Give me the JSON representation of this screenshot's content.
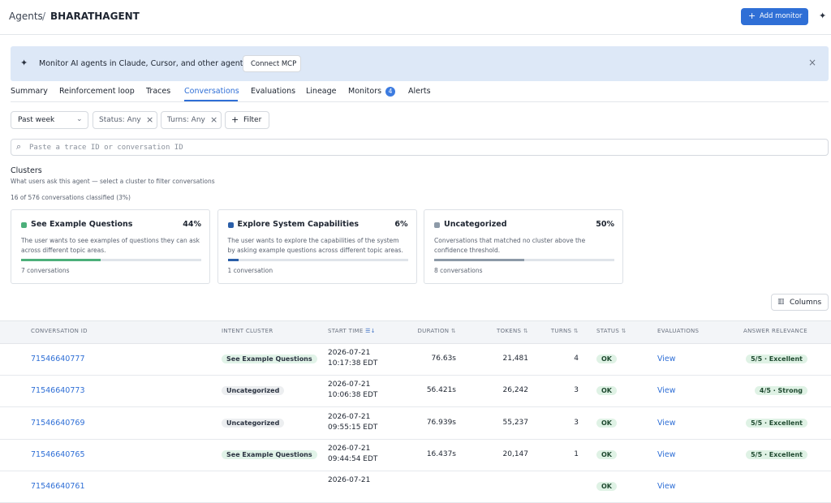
{
  "breadcrumb": {
    "parent": "Agents",
    "separator": "/",
    "current": "BHARATHAGENT"
  },
  "add_monitor": "Add monitor",
  "banner": {
    "text": "Monitor AI agents in Claude, Cursor, and other agents",
    "button": "Connect MCP"
  },
  "tabs": [
    {
      "label": "Summary"
    },
    {
      "label": "Reinforcement loop"
    },
    {
      "label": "Traces"
    },
    {
      "label": "Conversations",
      "active": true
    },
    {
      "label": "Evaluations"
    },
    {
      "label": "Lineage"
    },
    {
      "label": "Monitors",
      "badge": 4
    },
    {
      "label": "Alerts"
    }
  ],
  "filters": {
    "period": "Past week",
    "chips": [
      "Status: Any",
      "Turns: Any"
    ],
    "add": "Filter"
  },
  "search": {
    "placeholder": "Paste a trace ID or conversation ID"
  },
  "clusters": {
    "title": "Clusters",
    "subtitle": "What users ask this agent — select a cluster to filter conversations",
    "summary": "16 of 576 conversations classified (3%)",
    "items": [
      {
        "name": "See Example Questions",
        "color": "#4caf7a",
        "percent": {
          "value": 44,
          "label": "44%"
        },
        "description": "The user wants to see examples of questions they can ask across different topic areas.",
        "count": "7 conversations"
      },
      {
        "name": "Explore System Capabilities",
        "color": "#2a5ea8",
        "percent": {
          "value": 6,
          "label": "6%"
        },
        "description": "The user wants to explore the capabilities of the system by asking example questions across different topic areas.",
        "count": "1 conversation"
      },
      {
        "name": "Uncategorized",
        "color": "#8d9aa8",
        "percent": {
          "value": 50,
          "label": "50%"
        },
        "description": "Conversations that matched no cluster above the confidence threshold.",
        "count": "8 conversations"
      }
    ]
  },
  "table": {
    "columns_button": "Columns",
    "headers": [
      "CONVERSATION ID",
      "INTENT CLUSTER",
      "START TIME",
      "DURATION",
      "TOKENS",
      "TURNS",
      "STATUS",
      "EVALUATIONS",
      "ANSWER RELEVANCE"
    ],
    "rows": [
      {
        "id": "71546640777",
        "cluster": "See Example Questions",
        "start": [
          "2026-07-21",
          "10:17:38 EDT"
        ],
        "duration": "76.63s",
        "tokens": "21,481",
        "turns": 4,
        "status": "OK",
        "evaluations": "View",
        "relevance": "5/5 · Excellent"
      },
      {
        "id": "71546640773",
        "cluster": "Uncategorized",
        "start": [
          "2026-07-21",
          "10:06:38 EDT"
        ],
        "duration": "56.421s",
        "tokens": "26,242",
        "turns": 3,
        "status": "OK",
        "evaluations": "View",
        "relevance": "4/5 · Strong"
      },
      {
        "id": "71546640769",
        "cluster": "Uncategorized",
        "start": [
          "2026-07-21",
          "09:55:15 EDT"
        ],
        "duration": "76.939s",
        "tokens": "55,237",
        "turns": 3,
        "status": "OK",
        "evaluations": "View",
        "relevance": "5/5 · Excellent"
      },
      {
        "id": "71546640765",
        "cluster": "See Example Questions",
        "start": [
          "2026-07-21",
          "09:44:54 EDT"
        ],
        "duration": "16.437s",
        "tokens": "20,147",
        "turns": 1,
        "status": "OK",
        "evaluations": "View",
        "relevance": "5/5 · Excellent"
      },
      {
        "id": "71546640761",
        "start": [
          "2026-07-21"
        ],
        "status": "OK",
        "evaluations": "View"
      }
    ]
  }
}
